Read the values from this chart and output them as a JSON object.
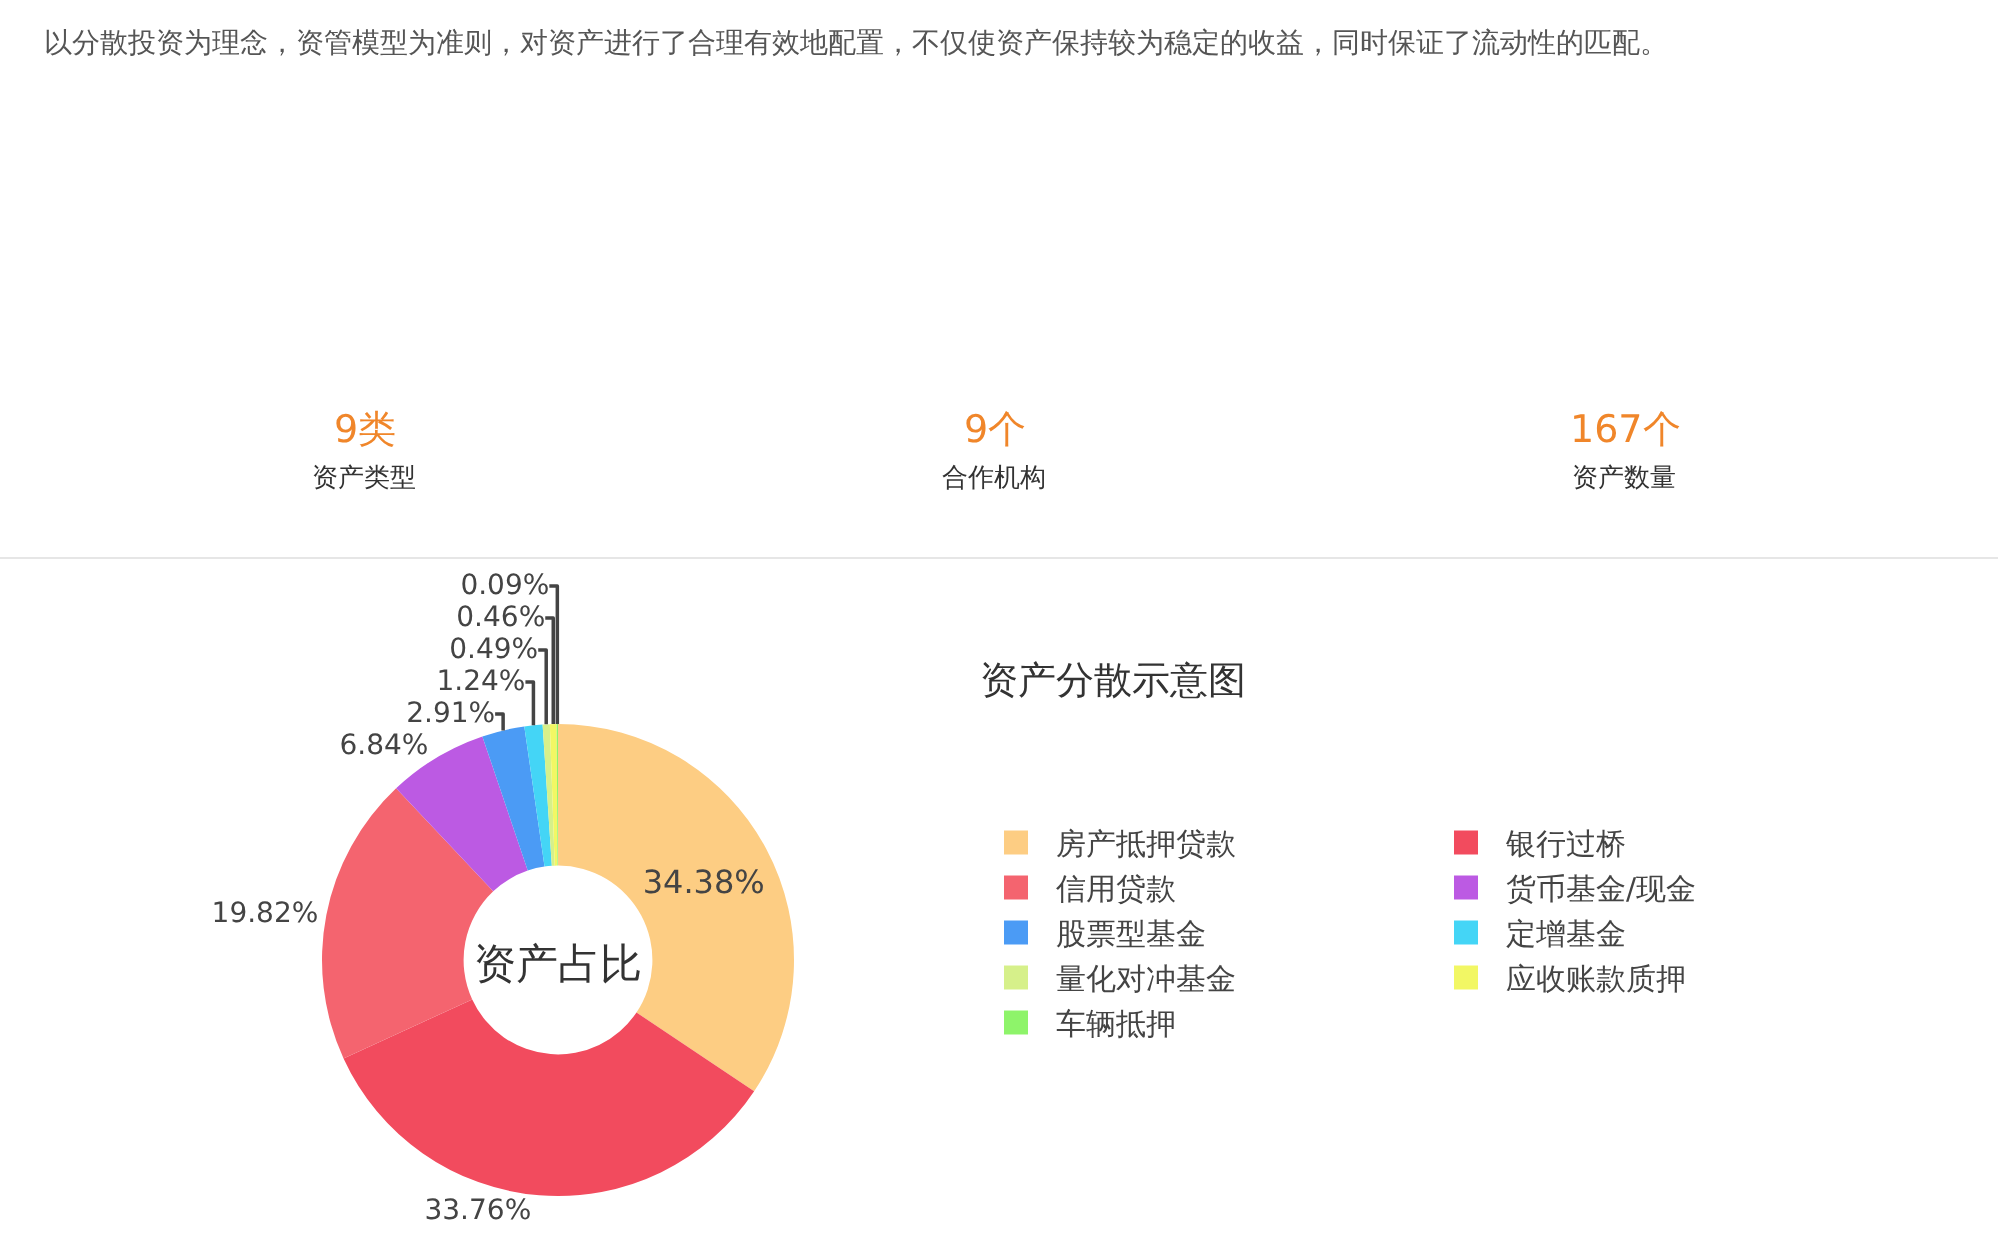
{
  "chart_data": [
    {
      "type": "other",
      "annotations": [
        "以分散投资为理念，资管模型为准则，对资产进行了合理有效地配置，不仅使资产保持较为稳定的收益，同时保证了流动性的匹配。",
        "9类",
        "资产类型",
        "9个",
        "合作机构",
        "167个",
        "资产数量"
      ]
    },
    {
      "type": "donut",
      "title": "资产分散示意图",
      "annotations": [
        "资产占比"
      ],
      "categories": [
        "房产抵押贷款",
        "银行过桥",
        "信用贷款",
        "货币基金/现金",
        "股票型基金",
        "定增基金",
        "量化对冲基金",
        "应收账款质押",
        "车辆抵押"
      ],
      "values": [
        34.38,
        33.76,
        19.82,
        6.84,
        2.91,
        1.24,
        0.49,
        0.46,
        0.09
      ],
      "value_labels": [
        "34.38%",
        "33.76%",
        "19.82%",
        "6.84%",
        "2.91%",
        "1.24%",
        "0.49%",
        "0.46%",
        "0.09%"
      ],
      "colors": [
        "#fdcd83",
        "#f24b5e",
        "#f4646f",
        "#bc5ae3",
        "#4b9bf5",
        "#44d5f6",
        "#d6f08a",
        "#f2f764",
        "#8ef46a"
      ],
      "legend": "right"
    }
  ]
}
